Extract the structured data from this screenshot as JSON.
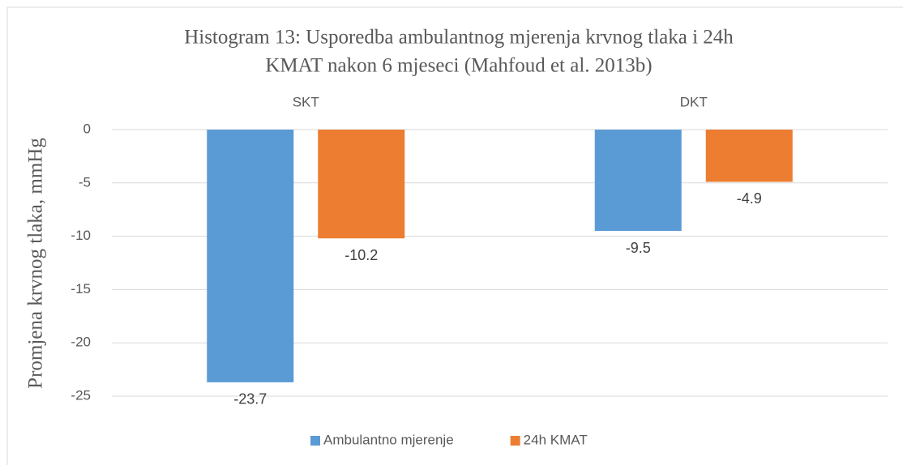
{
  "chart_data": {
    "type": "bar",
    "title": [
      "Histogram 13: Usporedba ambulantnog mjerenja krvnog tlaka i 24h",
      "KMAT nakon 6 mjeseci (Mahfoud et al. 2013b)"
    ],
    "y_label": "Promjena krvnog tlaka, mmHg",
    "categories": [
      "SKT",
      "DKT"
    ],
    "series": [
      {
        "name": "Ambulantno mjerenje",
        "color": "#5b9bd5",
        "values": [
          -23.7,
          -9.5
        ]
      },
      {
        "name": "24h KMAT",
        "color": "#ed7d31",
        "values": [
          -10.2,
          -4.9
        ]
      }
    ],
    "ylim": [
      -25,
      0
    ],
    "yticks": [
      0,
      -5,
      -10,
      -15,
      -20,
      -25
    ],
    "grid": true,
    "legend": "bottom"
  }
}
